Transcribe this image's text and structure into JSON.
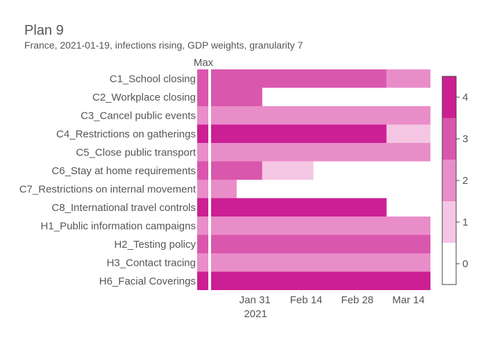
{
  "chart_data": {
    "type": "heatmap",
    "title": "Plan 9",
    "subtitle": "France, 2021-01-19, infections rising, GDP weights, granularity 7",
    "max_column_label": "Max",
    "x_ticks": [
      {
        "label": "Jan 31",
        "date": "2021-01-31"
      },
      {
        "label": "Feb 14",
        "date": "2021-02-14"
      },
      {
        "label": "Feb 28",
        "date": "2021-02-28"
      },
      {
        "label": "Mar 14",
        "date": "2021-03-14"
      }
    ],
    "x_year_label": "2021",
    "x_range": [
      "2021-01-19",
      "2021-03-20"
    ],
    "colorbar": {
      "ticks": [
        "0",
        "1",
        "2",
        "3",
        "4"
      ],
      "colors": [
        "#ffffff",
        "#f5c6e3",
        "#e98dc9",
        "#d957ad",
        "#cc1f93"
      ]
    },
    "rows": [
      {
        "label": "C1_School closing",
        "max": 3,
        "segments": [
          {
            "start": "2021-01-19",
            "end": "2021-03-08",
            "value": 3
          },
          {
            "start": "2021-03-08",
            "end": "2021-03-20",
            "value": 2
          }
        ]
      },
      {
        "label": "C2_Workplace closing",
        "max": 3,
        "segments": [
          {
            "start": "2021-01-19",
            "end": "2021-02-02",
            "value": 3
          }
        ]
      },
      {
        "label": "C3_Cancel public events",
        "max": 2,
        "segments": [
          {
            "start": "2021-01-19",
            "end": "2021-03-20",
            "value": 2
          }
        ]
      },
      {
        "label": "C4_Restrictions on gatherings",
        "max": 4,
        "segments": [
          {
            "start": "2021-01-19",
            "end": "2021-03-08",
            "value": 4
          },
          {
            "start": "2021-03-08",
            "end": "2021-03-20",
            "value": 1
          }
        ]
      },
      {
        "label": "C5_Close public transport",
        "max": 2,
        "segments": [
          {
            "start": "2021-01-19",
            "end": "2021-03-20",
            "value": 2
          }
        ]
      },
      {
        "label": "C6_Stay at home requirements",
        "max": 3,
        "segments": [
          {
            "start": "2021-01-19",
            "end": "2021-02-02",
            "value": 3
          },
          {
            "start": "2021-02-02",
            "end": "2021-02-16",
            "value": 1
          }
        ]
      },
      {
        "label": "C7_Restrictions on internal movement",
        "max": 2,
        "segments": [
          {
            "start": "2021-01-19",
            "end": "2021-01-26",
            "value": 2
          }
        ]
      },
      {
        "label": "C8_International travel controls",
        "max": 4,
        "segments": [
          {
            "start": "2021-01-19",
            "end": "2021-03-08",
            "value": 4
          }
        ]
      },
      {
        "label": "H1_Public information campaigns",
        "max": 2,
        "segments": [
          {
            "start": "2021-01-19",
            "end": "2021-03-20",
            "value": 2
          }
        ]
      },
      {
        "label": "H2_Testing policy",
        "max": 3,
        "segments": [
          {
            "start": "2021-01-19",
            "end": "2021-03-20",
            "value": 3
          }
        ]
      },
      {
        "label": "H3_Contact tracing",
        "max": 2,
        "segments": [
          {
            "start": "2021-01-19",
            "end": "2021-03-20",
            "value": 2
          }
        ]
      },
      {
        "label": "H6_Facial Coverings",
        "max": 4,
        "segments": [
          {
            "start": "2021-01-19",
            "end": "2021-03-20",
            "value": 4
          }
        ]
      }
    ]
  }
}
